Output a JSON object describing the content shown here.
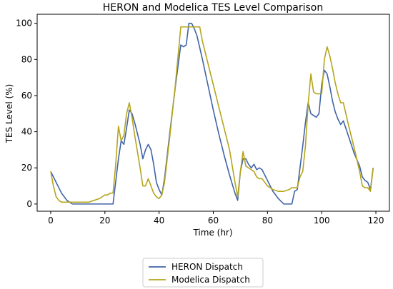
{
  "chart_data": {
    "type": "line",
    "title": "HERON and Modelica TES Level Comparison",
    "xlabel": "Time (hr)",
    "ylabel": "TES Level (%)",
    "xlim": [
      -5,
      125
    ],
    "ylim": [
      -4,
      105
    ],
    "xticks": [
      0,
      20,
      40,
      60,
      80,
      100,
      120
    ],
    "yticks": [
      0,
      20,
      40,
      60,
      80,
      100
    ],
    "grid": false,
    "legend_position": "below-plot",
    "series": [
      {
        "name": "HERON Dispatch",
        "color": "#4063a8",
        "x": [
          0,
          1,
          2,
          3,
          4,
          5,
          6,
          7,
          8,
          10,
          15,
          20,
          23,
          25,
          26,
          27,
          28,
          29,
          30,
          31,
          33,
          34,
          35,
          36,
          37,
          38,
          39,
          40,
          41,
          42,
          44,
          46,
          48,
          49,
          50,
          51,
          52,
          53,
          54,
          56,
          58,
          60,
          62,
          64,
          66,
          68,
          69,
          70,
          71,
          72,
          73,
          74,
          75,
          76,
          77,
          78,
          80,
          82,
          84,
          86,
          88,
          89,
          90,
          91,
          92,
          93,
          94,
          95,
          96,
          97,
          98,
          99,
          100,
          101,
          102,
          103,
          104,
          105,
          106,
          107,
          108,
          110,
          112,
          114,
          115,
          116,
          117,
          118,
          119
        ],
        "values": [
          18,
          15,
          12,
          9,
          6,
          4,
          2,
          1,
          0,
          0,
          0,
          0,
          0,
          25,
          35,
          33,
          42,
          52,
          50,
          45,
          33,
          25,
          30,
          33,
          30,
          22,
          12,
          8,
          5,
          14,
          40,
          65,
          88,
          87,
          88,
          100,
          100,
          97,
          93,
          80,
          66,
          52,
          39,
          27,
          16,
          6,
          2,
          18,
          25,
          25,
          22,
          20,
          22,
          19,
          20,
          19,
          13,
          7,
          3,
          0,
          0,
          0,
          7,
          8,
          20,
          32,
          45,
          56,
          50,
          49,
          48,
          50,
          66,
          74,
          72,
          65,
          57,
          51,
          47,
          44,
          46,
          37,
          28,
          21,
          15,
          13,
          12,
          8,
          20
        ]
      },
      {
        "name": "Modelica Dispatch",
        "color": "#b5a51c",
        "x": [
          0,
          1,
          2,
          3,
          4,
          5,
          6,
          7,
          8,
          10,
          12,
          14,
          16,
          18,
          19,
          20,
          21,
          22,
          23,
          24,
          25,
          26,
          27,
          28,
          29,
          30,
          31,
          33,
          34,
          35,
          36,
          37,
          38,
          39,
          40,
          41,
          42,
          44,
          46,
          48,
          50,
          52,
          54,
          55,
          56,
          58,
          60,
          62,
          64,
          66,
          68,
          69,
          70,
          71,
          72,
          73,
          74,
          75,
          76,
          77,
          78,
          80,
          82,
          84,
          86,
          88,
          89,
          90,
          91,
          92,
          93,
          94,
          95,
          96,
          97,
          98,
          99,
          100,
          101,
          102,
          103,
          104,
          105,
          106,
          107,
          108,
          110,
          112,
          114,
          115,
          116,
          117,
          118,
          119
        ],
        "values": [
          18,
          10,
          4,
          2,
          1,
          1,
          1,
          1,
          1,
          1,
          1,
          1,
          2,
          3,
          4,
          5,
          5,
          6,
          6,
          22,
          43,
          35,
          38,
          50,
          56,
          48,
          38,
          20,
          10,
          10,
          14,
          10,
          6,
          4,
          3,
          5,
          12,
          38,
          66,
          98,
          98,
          98,
          98,
          98,
          90,
          78,
          66,
          54,
          42,
          30,
          12,
          4,
          18,
          29,
          21,
          20,
          19,
          18,
          15,
          14,
          14,
          10,
          8,
          7,
          7,
          8,
          9,
          9,
          9,
          15,
          18,
          32,
          55,
          72,
          62,
          61,
          61,
          61,
          80,
          87,
          82,
          75,
          67,
          61,
          56,
          56,
          43,
          31,
          18,
          10,
          9,
          9,
          7,
          20
        ]
      }
    ]
  }
}
